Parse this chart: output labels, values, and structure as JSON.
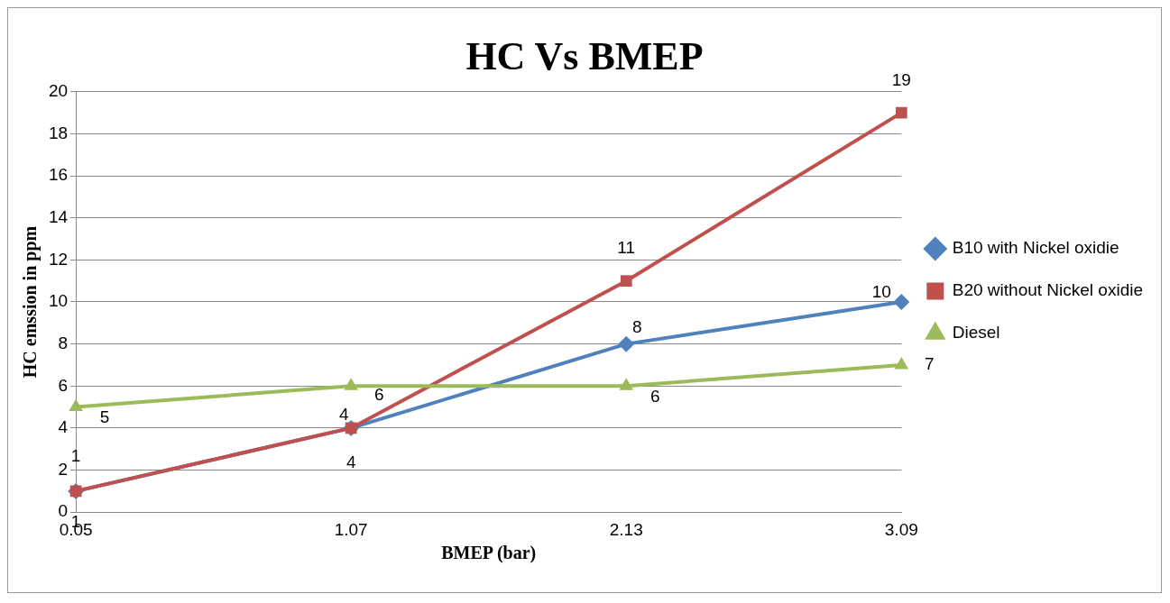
{
  "chart_data": {
    "type": "line",
    "title": "HC Vs BMEP",
    "xlabel": "BMEP (bar)",
    "ylabel": "HC emssion in ppm",
    "categories": [
      "0.05",
      "1.07",
      "2.13",
      "3.09"
    ],
    "series": [
      {
        "name": "B10 with Nickel oxidie",
        "color": "#4f81bd",
        "values": [
          1,
          4,
          8,
          10
        ],
        "marker": "diamond"
      },
      {
        "name": "B20 without Nickel oxidie",
        "color": "#c0504d",
        "values": [
          1,
          4,
          11,
          19
        ],
        "marker": "square"
      },
      {
        "name": "Diesel",
        "color": "#9bbb59",
        "values": [
          5,
          6,
          6,
          7
        ],
        "marker": "triangle"
      }
    ],
    "ylim": [
      0,
      20
    ],
    "yticks": [
      0,
      2,
      4,
      6,
      8,
      10,
      12,
      14,
      16,
      18,
      20
    ],
    "grid": "y",
    "legend": "right",
    "data_labels": true,
    "line_style": "solid"
  }
}
